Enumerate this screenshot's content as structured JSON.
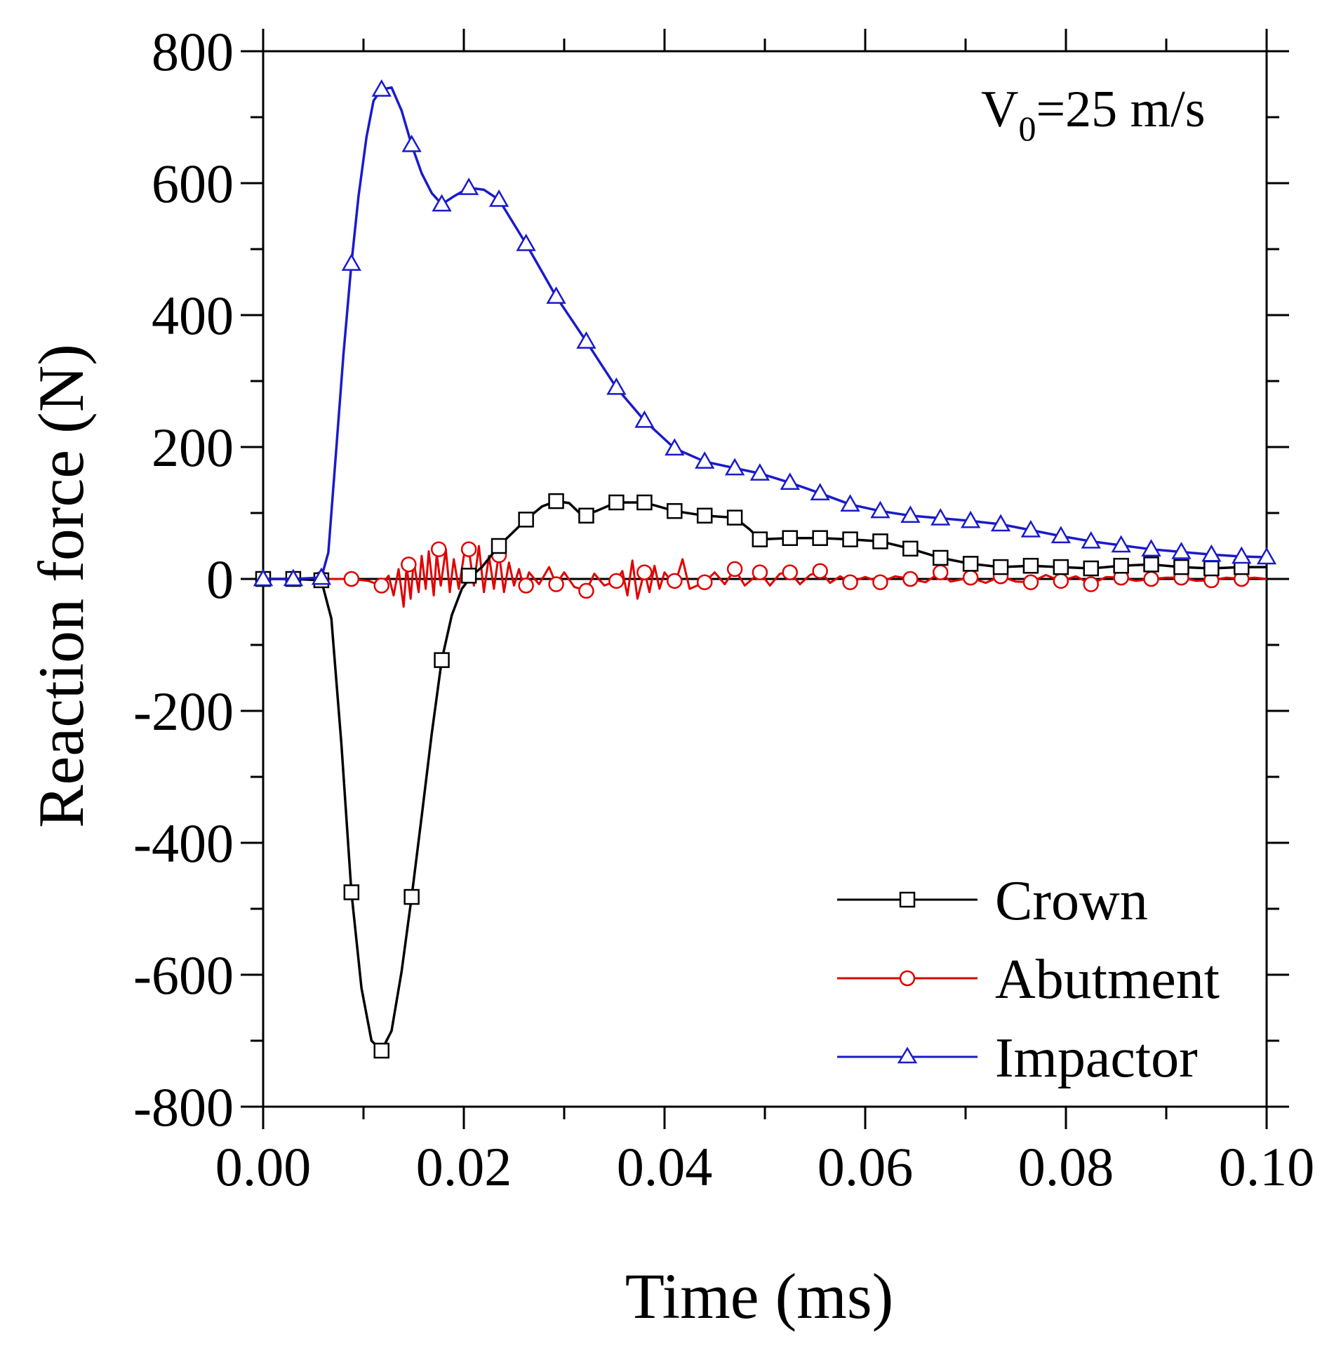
{
  "chart_data": {
    "type": "line",
    "xlabel": "Time (ms)",
    "ylabel": "Reaction force (N)",
    "xlim": [
      0.0,
      0.1
    ],
    "ylim": [
      -800,
      800
    ],
    "x_ticks": [
      "0.00",
      "0.02",
      "0.04",
      "0.06",
      "0.08",
      "0.10"
    ],
    "y_ticks": [
      "800",
      "600",
      "400",
      "200",
      "0",
      "-200",
      "-400",
      "-600",
      "-800"
    ],
    "annotation": {
      "prefix": "V",
      "subscript": "0",
      "suffix": "=25 m/s"
    },
    "legend_position": "bottom-right",
    "series": [
      {
        "name": "Crown",
        "color": "#000000",
        "marker": "square",
        "points": [
          [
            0.0,
            0
          ],
          [
            0.003,
            0
          ],
          [
            0.0058,
            -2
          ],
          [
            0.0068,
            -60
          ],
          [
            0.0078,
            -250
          ],
          [
            0.0088,
            -475
          ],
          [
            0.0098,
            -620
          ],
          [
            0.0108,
            -700
          ],
          [
            0.0118,
            -715
          ],
          [
            0.0128,
            -685
          ],
          [
            0.0138,
            -595
          ],
          [
            0.0148,
            -482
          ],
          [
            0.0158,
            -360
          ],
          [
            0.0168,
            -235
          ],
          [
            0.0178,
            -123
          ],
          [
            0.0188,
            -55
          ],
          [
            0.0198,
            -15
          ],
          [
            0.0208,
            5
          ],
          [
            0.0218,
            18
          ],
          [
            0.0235,
            50
          ],
          [
            0.0262,
            90
          ],
          [
            0.0278,
            110
          ],
          [
            0.0292,
            118
          ],
          [
            0.0305,
            115
          ],
          [
            0.0318,
            96
          ],
          [
            0.0332,
            103
          ],
          [
            0.0352,
            116
          ],
          [
            0.038,
            116
          ],
          [
            0.041,
            103
          ],
          [
            0.044,
            96
          ],
          [
            0.047,
            93
          ],
          [
            0.0485,
            75
          ],
          [
            0.0495,
            60
          ],
          [
            0.0525,
            62
          ],
          [
            0.0555,
            62
          ],
          [
            0.0585,
            60
          ],
          [
            0.0615,
            57
          ],
          [
            0.0645,
            46
          ],
          [
            0.0675,
            32
          ],
          [
            0.0705,
            23
          ],
          [
            0.0735,
            18
          ],
          [
            0.0765,
            20
          ],
          [
            0.0795,
            18
          ],
          [
            0.0825,
            16
          ],
          [
            0.0855,
            20
          ],
          [
            0.0885,
            22
          ],
          [
            0.0915,
            18
          ],
          [
            0.0945,
            16
          ],
          [
            0.0975,
            18
          ],
          [
            0.1,
            18
          ]
        ],
        "markers": [
          [
            0.0,
            0
          ],
          [
            0.003,
            0
          ],
          [
            0.0058,
            -2
          ],
          [
            0.0088,
            -475
          ],
          [
            0.0118,
            -715
          ],
          [
            0.0148,
            -482
          ],
          [
            0.0178,
            -123
          ],
          [
            0.0205,
            5
          ],
          [
            0.0235,
            50
          ],
          [
            0.0262,
            90
          ],
          [
            0.0292,
            118
          ],
          [
            0.0322,
            96
          ],
          [
            0.0352,
            116
          ],
          [
            0.038,
            116
          ],
          [
            0.041,
            103
          ],
          [
            0.044,
            96
          ],
          [
            0.047,
            93
          ],
          [
            0.0495,
            60
          ],
          [
            0.0525,
            62
          ],
          [
            0.0555,
            62
          ],
          [
            0.0585,
            60
          ],
          [
            0.0615,
            57
          ],
          [
            0.0645,
            46
          ],
          [
            0.0675,
            32
          ],
          [
            0.0705,
            23
          ],
          [
            0.0735,
            18
          ],
          [
            0.0765,
            20
          ],
          [
            0.0795,
            18
          ],
          [
            0.0825,
            16
          ],
          [
            0.0855,
            20
          ],
          [
            0.0885,
            22
          ],
          [
            0.0915,
            18
          ],
          [
            0.0945,
            16
          ],
          [
            0.0975,
            18
          ]
        ]
      },
      {
        "name": "Abutment",
        "color": "#e00000",
        "marker": "circle",
        "points": [
          [
            0.0,
            0
          ],
          [
            0.003,
            0
          ],
          [
            0.0058,
            0
          ],
          [
            0.0088,
            0
          ],
          [
            0.0105,
            -3
          ],
          [
            0.0118,
            -10
          ],
          [
            0.0125,
            5
          ],
          [
            0.013,
            -25
          ],
          [
            0.0135,
            15
          ],
          [
            0.014,
            -42
          ],
          [
            0.0143,
            20
          ],
          [
            0.0147,
            -30
          ],
          [
            0.015,
            28
          ],
          [
            0.0155,
            -20
          ],
          [
            0.0158,
            35
          ],
          [
            0.0162,
            -15
          ],
          [
            0.0165,
            42
          ],
          [
            0.017,
            -25
          ],
          [
            0.0173,
            38
          ],
          [
            0.0177,
            -10
          ],
          [
            0.0182,
            45
          ],
          [
            0.0186,
            -20
          ],
          [
            0.019,
            30
          ],
          [
            0.0195,
            -15
          ],
          [
            0.02,
            35
          ],
          [
            0.0205,
            45
          ],
          [
            0.021,
            -10
          ],
          [
            0.0215,
            50
          ],
          [
            0.022,
            -20
          ],
          [
            0.0225,
            35
          ],
          [
            0.023,
            -15
          ],
          [
            0.0235,
            40
          ],
          [
            0.024,
            -20
          ],
          [
            0.0245,
            25
          ],
          [
            0.025,
            -10
          ],
          [
            0.0255,
            15
          ],
          [
            0.026,
            -15
          ],
          [
            0.0265,
            10
          ],
          [
            0.0275,
            -8
          ],
          [
            0.0285,
            18
          ],
          [
            0.0292,
            -8
          ],
          [
            0.03,
            10
          ],
          [
            0.031,
            -12
          ],
          [
            0.0322,
            -18
          ],
          [
            0.033,
            8
          ],
          [
            0.034,
            -10
          ],
          [
            0.0352,
            -3
          ],
          [
            0.0358,
            12
          ],
          [
            0.0363,
            -25
          ],
          [
            0.0368,
            28
          ],
          [
            0.0373,
            -30
          ],
          [
            0.038,
            12
          ],
          [
            0.0385,
            -20
          ],
          [
            0.039,
            20
          ],
          [
            0.0395,
            -15
          ],
          [
            0.04,
            10
          ],
          [
            0.041,
            -10
          ],
          [
            0.0418,
            30
          ],
          [
            0.0425,
            -15
          ],
          [
            0.044,
            -5
          ],
          [
            0.045,
            10
          ],
          [
            0.046,
            -8
          ],
          [
            0.047,
            15
          ],
          [
            0.048,
            -10
          ],
          [
            0.0495,
            10
          ],
          [
            0.0505,
            -10
          ],
          [
            0.0515,
            8
          ],
          [
            0.0525,
            10
          ],
          [
            0.0535,
            -8
          ],
          [
            0.0545,
            6
          ],
          [
            0.0555,
            12
          ],
          [
            0.0565,
            -6
          ],
          [
            0.0575,
            4
          ],
          [
            0.0585,
            -5
          ],
          [
            0.06,
            3
          ],
          [
            0.0615,
            -5
          ],
          [
            0.063,
            4
          ],
          [
            0.0645,
            0
          ],
          [
            0.066,
            -5
          ],
          [
            0.0675,
            10
          ],
          [
            0.0685,
            -4
          ],
          [
            0.0705,
            2
          ],
          [
            0.072,
            -6
          ],
          [
            0.0735,
            4
          ],
          [
            0.075,
            -4
          ],
          [
            0.0765,
            -5
          ],
          [
            0.078,
            6
          ],
          [
            0.0795,
            -3
          ],
          [
            0.081,
            4
          ],
          [
            0.0825,
            -8
          ],
          [
            0.084,
            3
          ],
          [
            0.0855,
            2
          ],
          [
            0.087,
            -3
          ],
          [
            0.0885,
            0
          ],
          [
            0.09,
            2
          ],
          [
            0.0915,
            2
          ],
          [
            0.093,
            -3
          ],
          [
            0.0945,
            -2
          ],
          [
            0.096,
            2
          ],
          [
            0.0975,
            0
          ],
          [
            0.0988,
            2
          ],
          [
            0.1,
            0
          ]
        ],
        "markers": [
          [
            0.0,
            0
          ],
          [
            0.003,
            0
          ],
          [
            0.0058,
            0
          ],
          [
            0.0088,
            0
          ],
          [
            0.0118,
            -10
          ],
          [
            0.0145,
            22
          ],
          [
            0.0175,
            45
          ],
          [
            0.0205,
            45
          ],
          [
            0.0235,
            36
          ],
          [
            0.0262,
            -10
          ],
          [
            0.0292,
            -8
          ],
          [
            0.0322,
            -18
          ],
          [
            0.0352,
            -3
          ],
          [
            0.038,
            10
          ],
          [
            0.041,
            -3
          ],
          [
            0.044,
            -5
          ],
          [
            0.047,
            15
          ],
          [
            0.0495,
            10
          ],
          [
            0.0525,
            10
          ],
          [
            0.0555,
            12
          ],
          [
            0.0585,
            -5
          ],
          [
            0.0615,
            -5
          ],
          [
            0.0645,
            0
          ],
          [
            0.0675,
            10
          ],
          [
            0.0705,
            2
          ],
          [
            0.0735,
            4
          ],
          [
            0.0765,
            -5
          ],
          [
            0.0795,
            -3
          ],
          [
            0.0825,
            -8
          ],
          [
            0.0855,
            2
          ],
          [
            0.0885,
            0
          ],
          [
            0.0915,
            2
          ],
          [
            0.0945,
            -2
          ],
          [
            0.0975,
            0
          ]
        ]
      },
      {
        "name": "Impactor",
        "color": "#1a1acc",
        "marker": "triangle",
        "points": [
          [
            0.0,
            0
          ],
          [
            0.003,
            0
          ],
          [
            0.0058,
            2
          ],
          [
            0.0065,
            40
          ],
          [
            0.0072,
            180
          ],
          [
            0.008,
            340
          ],
          [
            0.0088,
            478
          ],
          [
            0.0095,
            580
          ],
          [
            0.0103,
            670
          ],
          [
            0.011,
            725
          ],
          [
            0.0118,
            742
          ],
          [
            0.0128,
            745
          ],
          [
            0.0138,
            710
          ],
          [
            0.0148,
            658
          ],
          [
            0.0158,
            615
          ],
          [
            0.0168,
            585
          ],
          [
            0.0178,
            568
          ],
          [
            0.019,
            580
          ],
          [
            0.0205,
            593
          ],
          [
            0.022,
            590
          ],
          [
            0.0235,
            575
          ],
          [
            0.0262,
            508
          ],
          [
            0.0292,
            428
          ],
          [
            0.0322,
            360
          ],
          [
            0.0352,
            290
          ],
          [
            0.038,
            240
          ],
          [
            0.041,
            198
          ],
          [
            0.044,
            178
          ],
          [
            0.047,
            168
          ],
          [
            0.0495,
            160
          ],
          [
            0.0525,
            146
          ],
          [
            0.0555,
            130
          ],
          [
            0.0585,
            113
          ],
          [
            0.0615,
            103
          ],
          [
            0.0645,
            96
          ],
          [
            0.0675,
            92
          ],
          [
            0.0705,
            88
          ],
          [
            0.0735,
            83
          ],
          [
            0.0765,
            74
          ],
          [
            0.0795,
            65
          ],
          [
            0.0825,
            57
          ],
          [
            0.0855,
            51
          ],
          [
            0.0885,
            45
          ],
          [
            0.0915,
            41
          ],
          [
            0.0945,
            37
          ],
          [
            0.0975,
            34
          ],
          [
            0.1,
            33
          ]
        ],
        "markers": [
          [
            0.0,
            0
          ],
          [
            0.003,
            0
          ],
          [
            0.0058,
            2
          ],
          [
            0.0088,
            478
          ],
          [
            0.0118,
            742
          ],
          [
            0.0148,
            658
          ],
          [
            0.0178,
            568
          ],
          [
            0.0205,
            593
          ],
          [
            0.0235,
            575
          ],
          [
            0.0262,
            508
          ],
          [
            0.0292,
            428
          ],
          [
            0.0322,
            360
          ],
          [
            0.0352,
            290
          ],
          [
            0.038,
            240
          ],
          [
            0.041,
            198
          ],
          [
            0.044,
            178
          ],
          [
            0.047,
            168
          ],
          [
            0.0495,
            160
          ],
          [
            0.0525,
            146
          ],
          [
            0.0555,
            130
          ],
          [
            0.0585,
            113
          ],
          [
            0.0615,
            103
          ],
          [
            0.0645,
            96
          ],
          [
            0.0675,
            92
          ],
          [
            0.0705,
            88
          ],
          [
            0.0735,
            83
          ],
          [
            0.0765,
            74
          ],
          [
            0.0795,
            65
          ],
          [
            0.0825,
            57
          ],
          [
            0.0855,
            51
          ],
          [
            0.0885,
            45
          ],
          [
            0.0915,
            41
          ],
          [
            0.0945,
            37
          ],
          [
            0.0975,
            34
          ],
          [
            0.1,
            33
          ]
        ]
      }
    ]
  }
}
